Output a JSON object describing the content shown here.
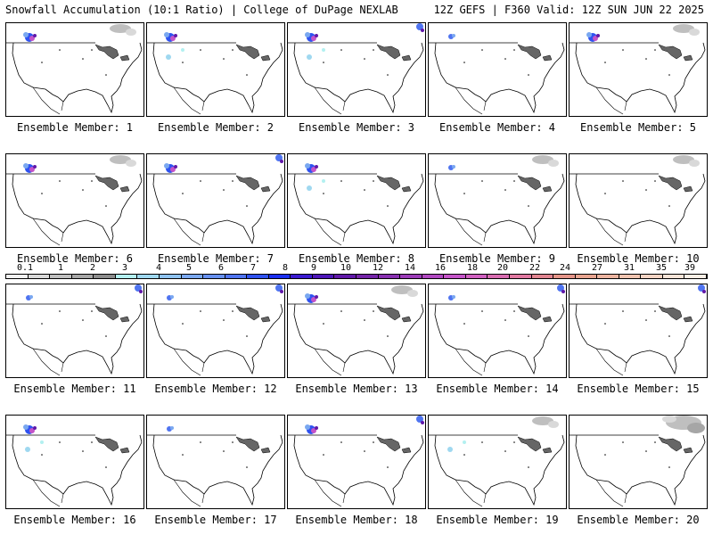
{
  "header": {
    "left": "Snowfall Accumulation (10:1 Ratio) | College of DuPage NEXLAB",
    "right": "12Z GEFS | F360 Valid: 12Z SUN JUN 22 2025"
  },
  "member_label_prefix": "Ensemble Member: ",
  "members": [
    {
      "number": "1",
      "snow": [
        "nw",
        "ne-gray"
      ]
    },
    {
      "number": "2",
      "snow": [
        "nw",
        "west-light"
      ]
    },
    {
      "number": "3",
      "snow": [
        "nw",
        "west-light",
        "ne-blue"
      ]
    },
    {
      "number": "4",
      "snow": [
        "nw-small"
      ]
    },
    {
      "number": "5",
      "snow": [
        "nw",
        "ne-gray"
      ]
    },
    {
      "number": "6",
      "snow": [
        "nw",
        "ne-gray"
      ]
    },
    {
      "number": "7",
      "snow": [
        "nw",
        "ne-blue"
      ]
    },
    {
      "number": "8",
      "snow": [
        "nw",
        "west-light"
      ]
    },
    {
      "number": "9",
      "snow": [
        "nw-small",
        "ne-gray"
      ]
    },
    {
      "number": "10",
      "snow": [
        "ne-gray"
      ]
    },
    {
      "number": "11",
      "snow": [
        "nw-small",
        "ne-blue"
      ]
    },
    {
      "number": "12",
      "snow": [
        "nw-small",
        "ne-blue"
      ]
    },
    {
      "number": "13",
      "snow": [
        "nw",
        "ne-gray"
      ]
    },
    {
      "number": "14",
      "snow": [
        "nw-small",
        "ne-blue"
      ]
    },
    {
      "number": "15",
      "snow": [
        "ne-blue"
      ]
    },
    {
      "number": "16",
      "snow": [
        "nw",
        "west-light"
      ]
    },
    {
      "number": "17",
      "snow": [
        "nw-small"
      ]
    },
    {
      "number": "18",
      "snow": [
        "nw",
        "ne-blue"
      ]
    },
    {
      "number": "19",
      "snow": [
        "west-light",
        "ne-gray"
      ]
    },
    {
      "number": "20",
      "snow": [
        "ne-gray-large"
      ]
    }
  ],
  "colorbar": {
    "ticks": [
      "0.1",
      "1",
      "2",
      "3",
      "4",
      "5",
      "6",
      "7",
      "8",
      "9",
      "10",
      "12",
      "14",
      "16",
      "18",
      "20",
      "22",
      "24",
      "27",
      "31",
      "35",
      "39"
    ],
    "colors": [
      "#f2f2f2",
      "#d9d9d9",
      "#bfbfbf",
      "#a6a6a6",
      "#8c8c8c",
      "#b3f0f0",
      "#9fd8f0",
      "#8ec2f0",
      "#7aa8f0",
      "#6690f0",
      "#4f74f0",
      "#2f52f0",
      "#1a2ff0",
      "#3a1ad0",
      "#4d16b8",
      "#6018a8",
      "#7424a8",
      "#8830b0",
      "#9c3cb8",
      "#b048c0",
      "#c454c8",
      "#d060c0",
      "#d86cb0",
      "#e078a0",
      "#e08490",
      "#e49488",
      "#e8a490",
      "#ecb4a0",
      "#f0c4b0",
      "#f4d4c4",
      "#f8e4d8",
      "#fcefe6"
    ]
  }
}
